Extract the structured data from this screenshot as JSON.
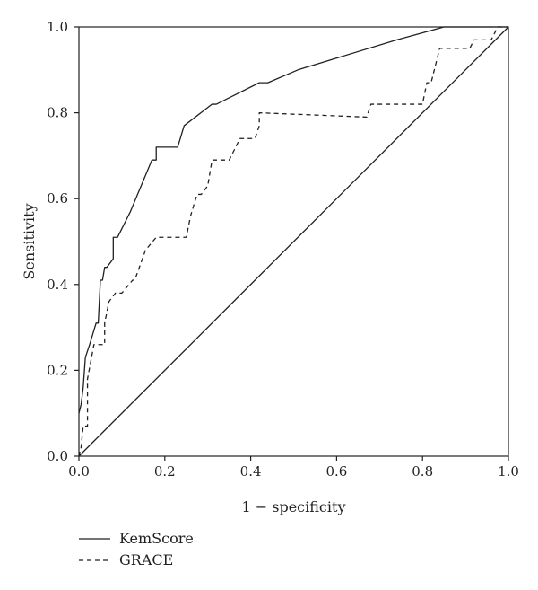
{
  "chart_data": {
    "type": "line",
    "title": "",
    "xlabel": "1 − specificity",
    "ylabel": "Sensitivity",
    "xlim": [
      0,
      1
    ],
    "ylim": [
      0,
      1
    ],
    "x_ticks": [
      "0.0",
      "0.2",
      "0.4",
      "0.6",
      "0.8",
      "1.0"
    ],
    "y_ticks": [
      "0.0",
      "0.2",
      "0.4",
      "0.6",
      "0.8",
      "1.0"
    ],
    "grid": false,
    "legend_position": "bottom-left",
    "series": [
      {
        "name": "KemScore",
        "line_style": "solid",
        "color": "#231f20",
        "points": [
          [
            0.0,
            0.1
          ],
          [
            0.005,
            0.12
          ],
          [
            0.01,
            0.16
          ],
          [
            0.015,
            0.23
          ],
          [
            0.025,
            0.26
          ],
          [
            0.04,
            0.31
          ],
          [
            0.045,
            0.31
          ],
          [
            0.05,
            0.41
          ],
          [
            0.055,
            0.41
          ],
          [
            0.06,
            0.44
          ],
          [
            0.065,
            0.44
          ],
          [
            0.08,
            0.46
          ],
          [
            0.08,
            0.51
          ],
          [
            0.09,
            0.51
          ],
          [
            0.12,
            0.57
          ],
          [
            0.17,
            0.69
          ],
          [
            0.18,
            0.69
          ],
          [
            0.18,
            0.72
          ],
          [
            0.23,
            0.72
          ],
          [
            0.245,
            0.77
          ],
          [
            0.31,
            0.82
          ],
          [
            0.32,
            0.82
          ],
          [
            0.42,
            0.87
          ],
          [
            0.44,
            0.87
          ],
          [
            0.51,
            0.9
          ],
          [
            0.74,
            0.97
          ],
          [
            0.85,
            1.0
          ],
          [
            1.0,
            1.0
          ]
        ]
      },
      {
        "name": "GRACE",
        "line_style": "dashed",
        "color": "#231f20",
        "points": [
          [
            0.0,
            0.0
          ],
          [
            0.005,
            0.02
          ],
          [
            0.01,
            0.07
          ],
          [
            0.02,
            0.07
          ],
          [
            0.02,
            0.18
          ],
          [
            0.035,
            0.26
          ],
          [
            0.06,
            0.26
          ],
          [
            0.06,
            0.31
          ],
          [
            0.07,
            0.36
          ],
          [
            0.085,
            0.38
          ],
          [
            0.1,
            0.38
          ],
          [
            0.125,
            0.41
          ],
          [
            0.13,
            0.41
          ],
          [
            0.155,
            0.48
          ],
          [
            0.18,
            0.51
          ],
          [
            0.25,
            0.51
          ],
          [
            0.26,
            0.56
          ],
          [
            0.275,
            0.61
          ],
          [
            0.285,
            0.61
          ],
          [
            0.3,
            0.63
          ],
          [
            0.31,
            0.69
          ],
          [
            0.35,
            0.69
          ],
          [
            0.36,
            0.71
          ],
          [
            0.375,
            0.74
          ],
          [
            0.41,
            0.74
          ],
          [
            0.42,
            0.77
          ],
          [
            0.42,
            0.8
          ],
          [
            0.67,
            0.79
          ],
          [
            0.68,
            0.82
          ],
          [
            0.8,
            0.82
          ],
          [
            0.81,
            0.87
          ],
          [
            0.82,
            0.87
          ],
          [
            0.84,
            0.95
          ],
          [
            0.91,
            0.95
          ],
          [
            0.92,
            0.97
          ],
          [
            0.96,
            0.97
          ],
          [
            0.97,
            0.99
          ],
          [
            0.975,
            1.0
          ],
          [
            1.0,
            1.0
          ]
        ]
      },
      {
        "name": "",
        "line_style": "solid",
        "color": "#231f20",
        "points": [
          [
            0.0,
            0.0
          ],
          [
            1.0,
            1.0
          ]
        ]
      }
    ]
  }
}
